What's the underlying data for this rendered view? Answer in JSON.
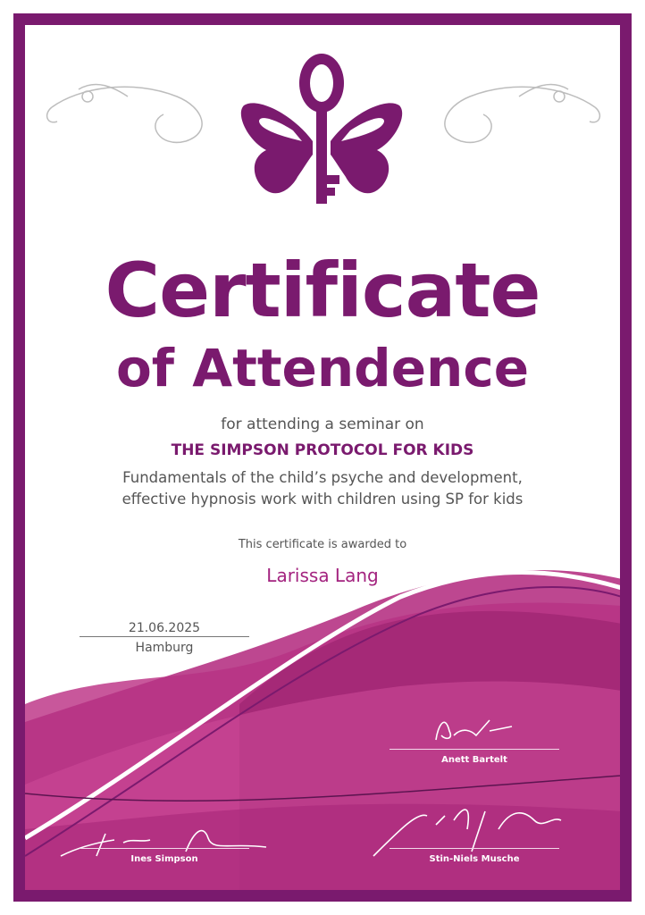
{
  "certificate": {
    "title_line1": "Certificate",
    "title_line2": "of Attendence",
    "intro": "for attending a seminar on",
    "seminar_title": "THE SIMPSON PROTOCOL FOR KIDS",
    "description_line1": "Fundamentals of the child’s psyche and development,",
    "description_line2": "effective hypnosis work with children using SP for kids",
    "awarded_text": "This certificate is awarded to",
    "recipient": "Larissa Lang",
    "date": "21.06.2025",
    "place": "Hamburg"
  },
  "signatories": [
    {
      "name": "Anett Bartelt",
      "signature": "Bartelt"
    },
    {
      "name": "Ines Simpson",
      "signature": "Ines Simpson"
    },
    {
      "name": "Stin-Niels Musche",
      "signature": "Stin-Niels Musche"
    }
  ],
  "logo": {
    "icon": "butterfly-key-icon"
  },
  "colors": {
    "frame": "#7a1a6e",
    "accent": "#a3237f",
    "text": "#555555",
    "wave": "#b8327f"
  }
}
